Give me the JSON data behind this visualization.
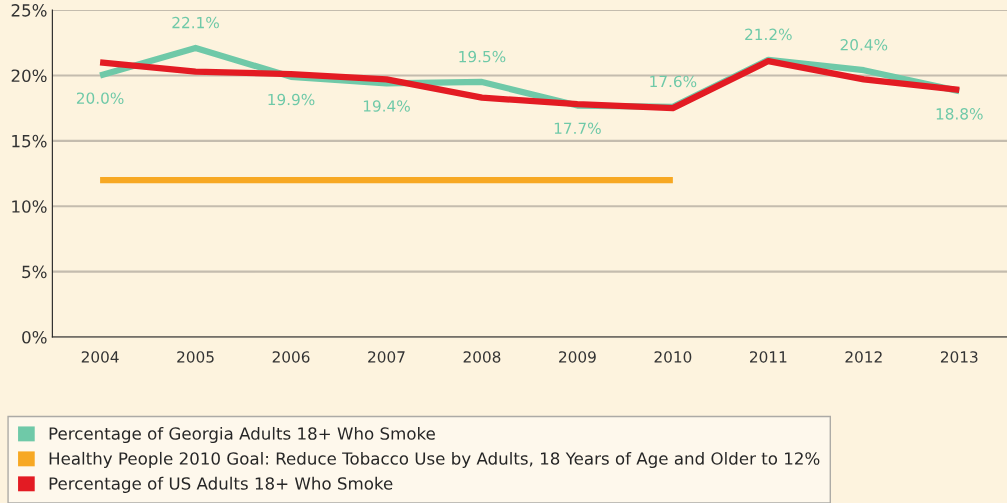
{
  "chart_data": {
    "type": "line",
    "categories": [
      "2004",
      "2005",
      "2006",
      "2007",
      "2008",
      "2009",
      "2010",
      "2011",
      "2012",
      "2013"
    ],
    "series": [
      {
        "name": "Percentage of Georgia Adults 18+ Who Smoke",
        "color": "#6fc9a8",
        "values": [
          20.0,
          22.1,
          19.9,
          19.4,
          19.5,
          17.7,
          17.6,
          21.2,
          20.4,
          18.8
        ],
        "value_labels": [
          "20.0%",
          "22.1%",
          "19.9%",
          "19.4%",
          "19.5%",
          "17.7%",
          "17.6%",
          "21.2%",
          "20.4%",
          "18.8%"
        ]
      },
      {
        "name": "Healthy People 2010 Goal: Reduce Tobacco Use by Adults, 18 Years of Age and Older to 12%",
        "color": "#f7a823",
        "values": [
          12,
          12,
          12,
          12,
          12,
          12,
          12,
          null,
          null,
          null
        ]
      },
      {
        "name": "Percentage of US Adults 18+ Who Smoke",
        "color": "#e31b23",
        "values": [
          21.0,
          20.3,
          20.1,
          19.7,
          18.3,
          17.8,
          17.5,
          21.1,
          19.7,
          18.9
        ]
      }
    ],
    "ylim": [
      0,
      25
    ],
    "yticks": [
      {
        "value": 0,
        "label": "0%"
      },
      {
        "value": 5,
        "label": "5%"
      },
      {
        "value": 10,
        "label": "10%"
      },
      {
        "value": 15,
        "label": "15%"
      },
      {
        "value": 20,
        "label": "20%"
      },
      {
        "value": 25,
        "label": "25%"
      }
    ],
    "grid": "y",
    "legend": "bottom",
    "marker": "none",
    "line_style": "solid"
  }
}
